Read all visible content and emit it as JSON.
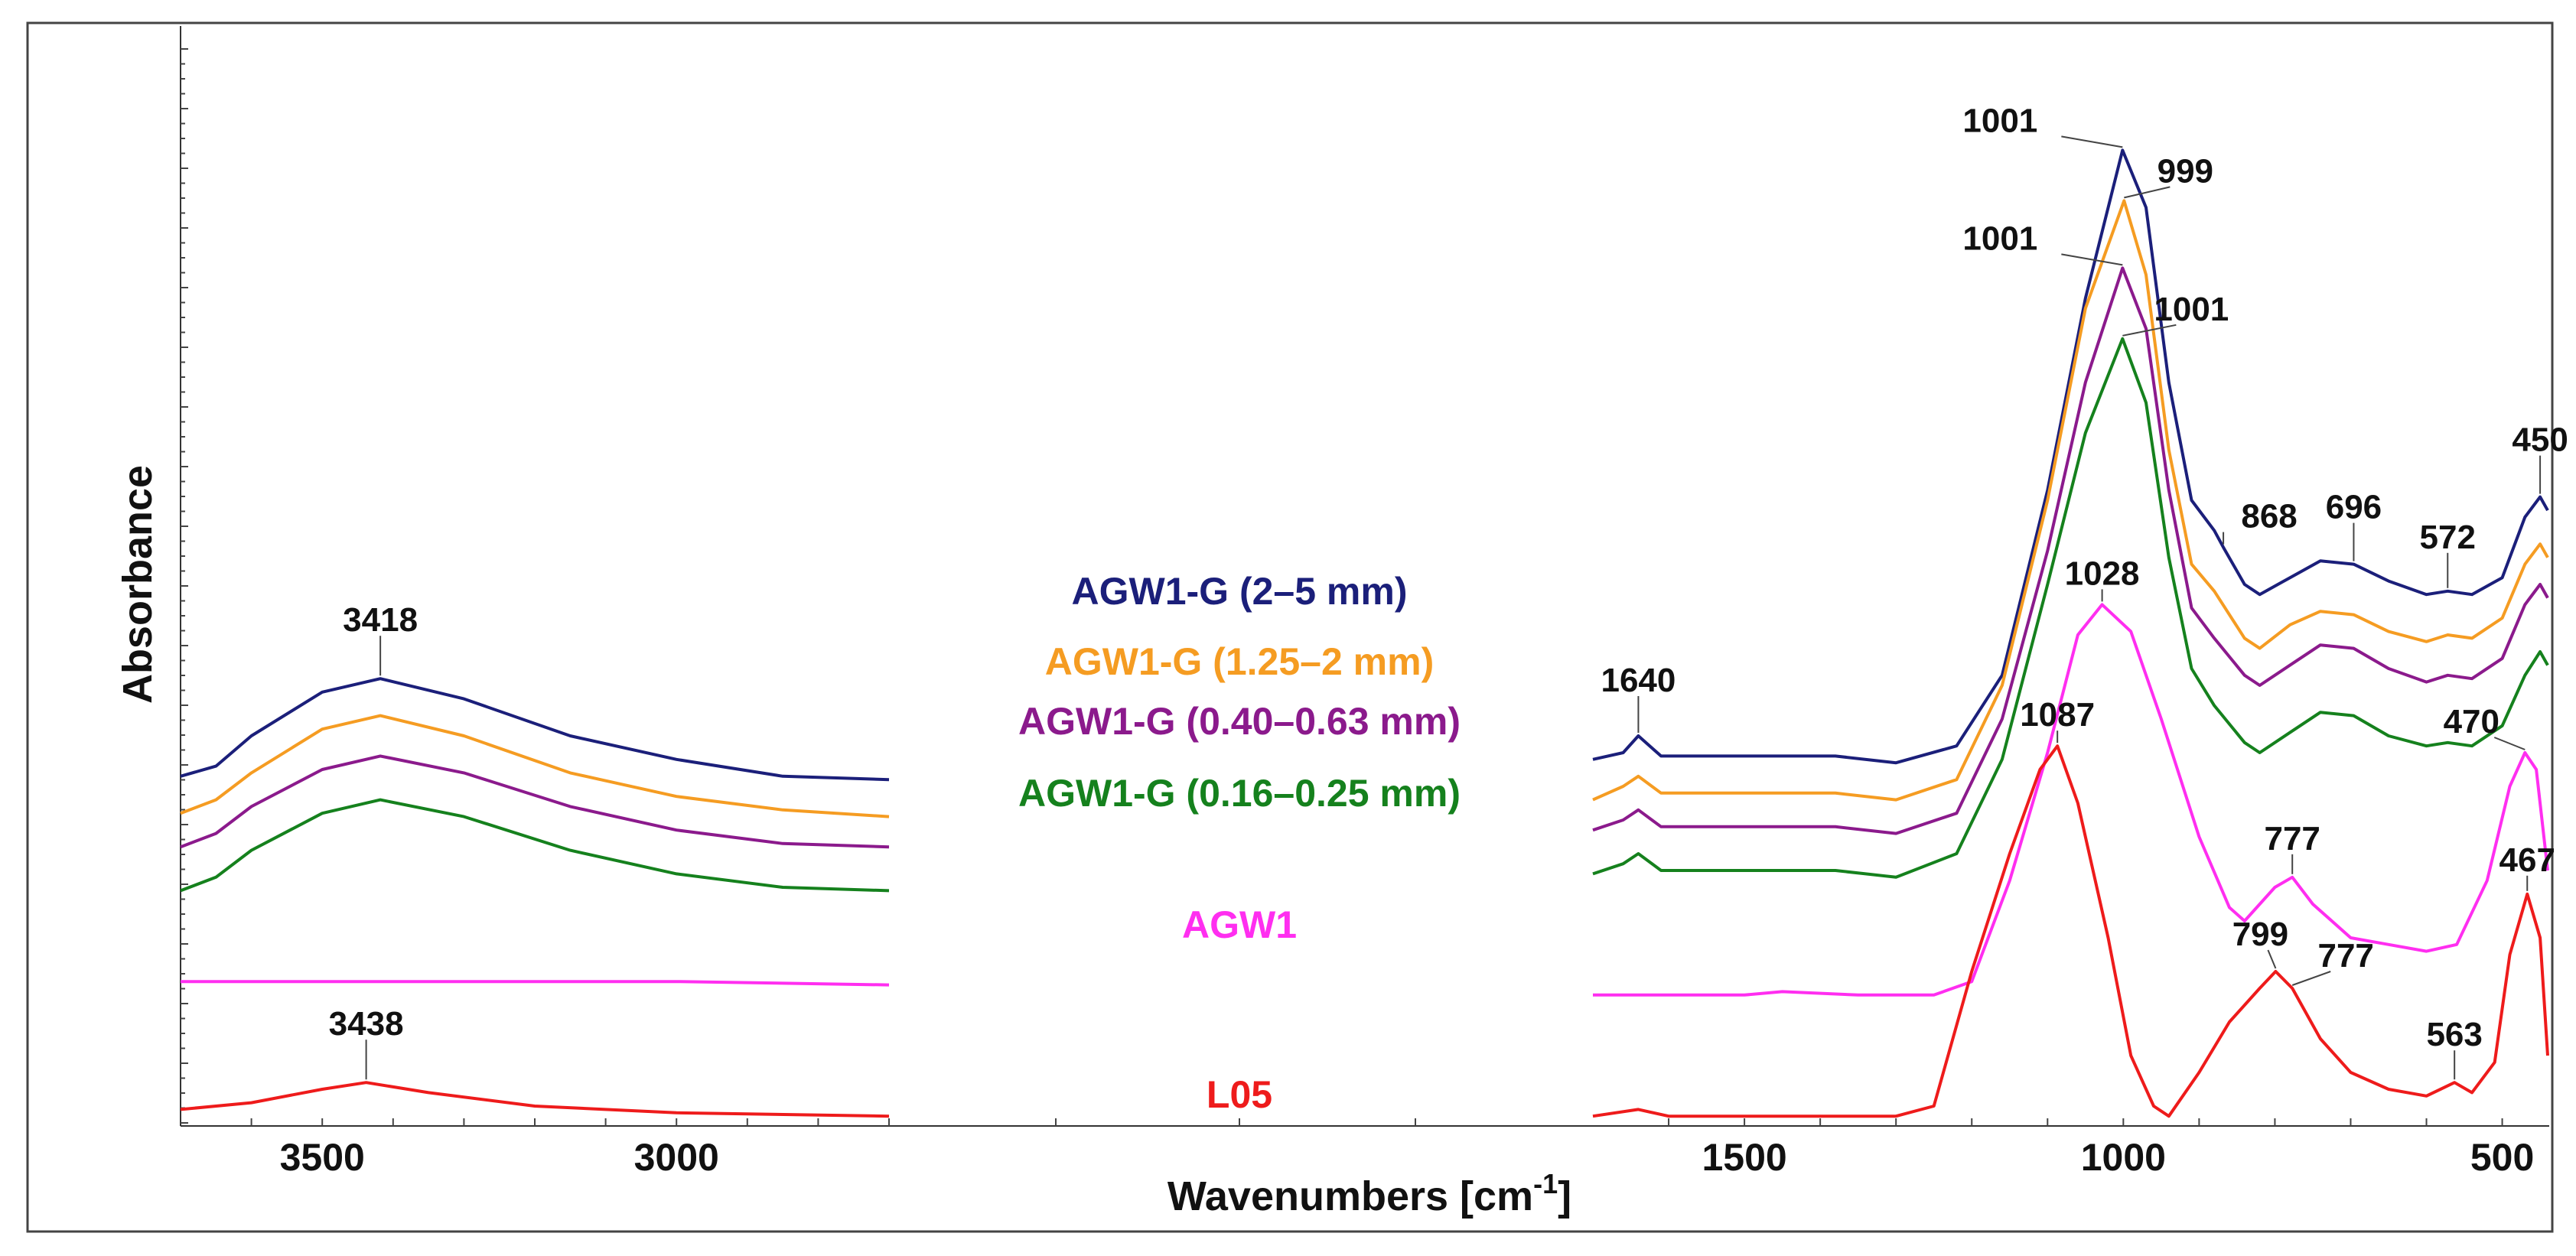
{
  "chart_data": {
    "type": "line",
    "title": "",
    "xlabel": "Wavenumbers [cm",
    "xlabel_sup": "-1",
    "xlabel_end": "]",
    "ylabel": "Absorbance",
    "x_reversed": true,
    "x_tick_labels": [
      "3500",
      "3000",
      "1500",
      "1000",
      "500"
    ],
    "x_tick_values": [
      3500,
      3000,
      1500,
      1000,
      500
    ],
    "left_segment_range": [
      3700,
      2700
    ],
    "right_segment_range": [
      1700,
      440
    ],
    "series": [
      {
        "name": "AGW1-G (2–5 mm)",
        "color": "#1b1f7a",
        "left": [
          [
            3700,
            1.03
          ],
          [
            3650,
            1.06
          ],
          [
            3600,
            1.15
          ],
          [
            3500,
            1.28
          ],
          [
            3418,
            1.32
          ],
          [
            3300,
            1.26
          ],
          [
            3150,
            1.15
          ],
          [
            3000,
            1.08
          ],
          [
            2850,
            1.03
          ],
          [
            2700,
            1.02
          ]
        ],
        "right": [
          [
            1700,
            1.08
          ],
          [
            1660,
            1.1
          ],
          [
            1640,
            1.15
          ],
          [
            1610,
            1.09
          ],
          [
            1550,
            1.09
          ],
          [
            1450,
            1.09
          ],
          [
            1380,
            1.09
          ],
          [
            1300,
            1.07
          ],
          [
            1220,
            1.12
          ],
          [
            1160,
            1.33
          ],
          [
            1100,
            1.88
          ],
          [
            1050,
            2.45
          ],
          [
            1001,
            2.89
          ],
          [
            970,
            2.72
          ],
          [
            940,
            2.2
          ],
          [
            910,
            1.85
          ],
          [
            880,
            1.76
          ],
          [
            868,
            1.71
          ],
          [
            840,
            1.6
          ],
          [
            820,
            1.57
          ],
          [
            780,
            1.62
          ],
          [
            740,
            1.67
          ],
          [
            696,
            1.66
          ],
          [
            650,
            1.61
          ],
          [
            600,
            1.57
          ],
          [
            572,
            1.58
          ],
          [
            540,
            1.57
          ],
          [
            500,
            1.62
          ],
          [
            470,
            1.8
          ],
          [
            450,
            1.86
          ],
          [
            440,
            1.82
          ]
        ]
      },
      {
        "name": "AGW1-G (1.25–2 mm)",
        "color": "#f59c22",
        "left": [
          [
            3700,
            0.92
          ],
          [
            3650,
            0.96
          ],
          [
            3600,
            1.04
          ],
          [
            3500,
            1.17
          ],
          [
            3418,
            1.21
          ],
          [
            3300,
            1.15
          ],
          [
            3150,
            1.04
          ],
          [
            3000,
            0.97
          ],
          [
            2850,
            0.93
          ],
          [
            2700,
            0.91
          ]
        ],
        "right": [
          [
            1700,
            0.96
          ],
          [
            1660,
            1.0
          ],
          [
            1640,
            1.03
          ],
          [
            1610,
            0.98
          ],
          [
            1550,
            0.98
          ],
          [
            1450,
            0.98
          ],
          [
            1380,
            0.98
          ],
          [
            1300,
            0.96
          ],
          [
            1220,
            1.02
          ],
          [
            1160,
            1.3
          ],
          [
            1100,
            1.85
          ],
          [
            1050,
            2.42
          ],
          [
            999,
            2.74
          ],
          [
            970,
            2.52
          ],
          [
            940,
            2.0
          ],
          [
            910,
            1.66
          ],
          [
            880,
            1.58
          ],
          [
            840,
            1.44
          ],
          [
            820,
            1.41
          ],
          [
            780,
            1.48
          ],
          [
            740,
            1.52
          ],
          [
            696,
            1.51
          ],
          [
            650,
            1.46
          ],
          [
            600,
            1.43
          ],
          [
            572,
            1.45
          ],
          [
            540,
            1.44
          ],
          [
            500,
            1.5
          ],
          [
            470,
            1.66
          ],
          [
            450,
            1.72
          ],
          [
            440,
            1.68
          ]
        ]
      },
      {
        "name": "AGW1-G (0.40–0.63 mm)",
        "color": "#8b1a8c",
        "left": [
          [
            3700,
            0.82
          ],
          [
            3650,
            0.86
          ],
          [
            3600,
            0.94
          ],
          [
            3500,
            1.05
          ],
          [
            3418,
            1.09
          ],
          [
            3300,
            1.04
          ],
          [
            3150,
            0.94
          ],
          [
            3000,
            0.87
          ],
          [
            2850,
            0.83
          ],
          [
            2700,
            0.82
          ]
        ],
        "right": [
          [
            1700,
            0.87
          ],
          [
            1660,
            0.9
          ],
          [
            1640,
            0.93
          ],
          [
            1610,
            0.88
          ],
          [
            1550,
            0.88
          ],
          [
            1450,
            0.88
          ],
          [
            1380,
            0.88
          ],
          [
            1300,
            0.86
          ],
          [
            1220,
            0.92
          ],
          [
            1160,
            1.2
          ],
          [
            1100,
            1.7
          ],
          [
            1050,
            2.2
          ],
          [
            1001,
            2.54
          ],
          [
            970,
            2.36
          ],
          [
            940,
            1.88
          ],
          [
            910,
            1.53
          ],
          [
            880,
            1.44
          ],
          [
            840,
            1.33
          ],
          [
            820,
            1.3
          ],
          [
            780,
            1.36
          ],
          [
            740,
            1.42
          ],
          [
            696,
            1.41
          ],
          [
            650,
            1.35
          ],
          [
            600,
            1.31
          ],
          [
            572,
            1.33
          ],
          [
            540,
            1.32
          ],
          [
            500,
            1.38
          ],
          [
            470,
            1.54
          ],
          [
            450,
            1.6
          ],
          [
            440,
            1.56
          ]
        ]
      },
      {
        "name": "AGW1-G (0.16–0.25 mm)",
        "color": "#15811d",
        "left": [
          [
            3700,
            0.69
          ],
          [
            3650,
            0.73
          ],
          [
            3600,
            0.81
          ],
          [
            3500,
            0.92
          ],
          [
            3418,
            0.96
          ],
          [
            3300,
            0.91
          ],
          [
            3150,
            0.81
          ],
          [
            3000,
            0.74
          ],
          [
            2850,
            0.7
          ],
          [
            2700,
            0.69
          ]
        ],
        "right": [
          [
            1700,
            0.74
          ],
          [
            1660,
            0.77
          ],
          [
            1640,
            0.8
          ],
          [
            1610,
            0.75
          ],
          [
            1550,
            0.75
          ],
          [
            1450,
            0.75
          ],
          [
            1380,
            0.75
          ],
          [
            1300,
            0.73
          ],
          [
            1220,
            0.8
          ],
          [
            1160,
            1.08
          ],
          [
            1100,
            1.6
          ],
          [
            1050,
            2.05
          ],
          [
            1001,
            2.33
          ],
          [
            970,
            2.14
          ],
          [
            940,
            1.68
          ],
          [
            910,
            1.35
          ],
          [
            880,
            1.24
          ],
          [
            840,
            1.13
          ],
          [
            820,
            1.1
          ],
          [
            780,
            1.16
          ],
          [
            740,
            1.22
          ],
          [
            696,
            1.21
          ],
          [
            650,
            1.15
          ],
          [
            600,
            1.12
          ],
          [
            572,
            1.13
          ],
          [
            540,
            1.12
          ],
          [
            500,
            1.18
          ],
          [
            470,
            1.33
          ],
          [
            450,
            1.4
          ],
          [
            440,
            1.36
          ]
        ]
      },
      {
        "name": "AGW1",
        "color": "#ff2ef0",
        "left": [
          [
            3700,
            0.42
          ],
          [
            3500,
            0.42
          ],
          [
            3300,
            0.42
          ],
          [
            3000,
            0.42
          ],
          [
            2700,
            0.41
          ]
        ],
        "right": [
          [
            1700,
            0.38
          ],
          [
            1600,
            0.38
          ],
          [
            1500,
            0.38
          ],
          [
            1450,
            0.39
          ],
          [
            1350,
            0.38
          ],
          [
            1250,
            0.38
          ],
          [
            1200,
            0.42
          ],
          [
            1150,
            0.72
          ],
          [
            1100,
            1.1
          ],
          [
            1060,
            1.45
          ],
          [
            1028,
            1.54
          ],
          [
            990,
            1.46
          ],
          [
            950,
            1.2
          ],
          [
            900,
            0.85
          ],
          [
            860,
            0.64
          ],
          [
            840,
            0.6
          ],
          [
            800,
            0.7
          ],
          [
            777,
            0.73
          ],
          [
            750,
            0.65
          ],
          [
            700,
            0.55
          ],
          [
            650,
            0.53
          ],
          [
            600,
            0.51
          ],
          [
            560,
            0.53
          ],
          [
            520,
            0.72
          ],
          [
            490,
            1.0
          ],
          [
            470,
            1.1
          ],
          [
            455,
            1.05
          ],
          [
            440,
            0.75
          ]
        ]
      },
      {
        "name": "L05",
        "color": "#ee1b1b",
        "left": [
          [
            3700,
            0.04
          ],
          [
            3600,
            0.06
          ],
          [
            3500,
            0.1
          ],
          [
            3438,
            0.12
          ],
          [
            3350,
            0.09
          ],
          [
            3200,
            0.05
          ],
          [
            3000,
            0.03
          ],
          [
            2700,
            0.02
          ]
        ],
        "right": [
          [
            1700,
            0.02
          ],
          [
            1640,
            0.04
          ],
          [
            1600,
            0.02
          ],
          [
            1500,
            0.02
          ],
          [
            1400,
            0.02
          ],
          [
            1300,
            0.02
          ],
          [
            1250,
            0.05
          ],
          [
            1200,
            0.45
          ],
          [
            1150,
            0.8
          ],
          [
            1110,
            1.05
          ],
          [
            1087,
            1.12
          ],
          [
            1060,
            0.95
          ],
          [
            1020,
            0.55
          ],
          [
            990,
            0.2
          ],
          [
            960,
            0.05
          ],
          [
            940,
            0.02
          ],
          [
            900,
            0.15
          ],
          [
            860,
            0.3
          ],
          [
            820,
            0.4
          ],
          [
            799,
            0.45
          ],
          [
            777,
            0.4
          ],
          [
            740,
            0.25
          ],
          [
            700,
            0.15
          ],
          [
            650,
            0.1
          ],
          [
            600,
            0.08
          ],
          [
            563,
            0.12
          ],
          [
            540,
            0.09
          ],
          [
            510,
            0.18
          ],
          [
            490,
            0.5
          ],
          [
            467,
            0.68
          ],
          [
            450,
            0.55
          ],
          [
            440,
            0.2
          ]
        ]
      }
    ],
    "annotations": [
      {
        "text": "3418",
        "series": 0,
        "x": 3418
      },
      {
        "text": "3438",
        "series": 5,
        "x": 3438
      },
      {
        "text": "1640",
        "series": 0,
        "x": 1640
      },
      {
        "text": "1001",
        "series": 0,
        "x": 1001
      },
      {
        "text": "999",
        "series": 1,
        "x": 999
      },
      {
        "text": "1001",
        "series": 2,
        "x": 1001
      },
      {
        "text": "1001",
        "series": 3,
        "x": 1001
      },
      {
        "text": "868",
        "series": 0,
        "x": 868
      },
      {
        "text": "696",
        "series": 0,
        "x": 696
      },
      {
        "text": "572",
        "series": 0,
        "x": 572
      },
      {
        "text": "450",
        "series": 0,
        "x": 450
      },
      {
        "text": "1028",
        "series": 4,
        "x": 1028
      },
      {
        "text": "777",
        "series": 4,
        "x": 777
      },
      {
        "text": "470",
        "series": 4,
        "x": 470
      },
      {
        "text": "1087",
        "series": 5,
        "x": 1087
      },
      {
        "text": "799",
        "series": 5,
        "x": 799
      },
      {
        "text": "777",
        "series": 5,
        "x": 777
      },
      {
        "text": "563",
        "series": 5,
        "x": 563
      },
      {
        "text": "467",
        "series": 5,
        "x": 467
      }
    ],
    "legend": [
      "AGW1-G (2–5 mm)",
      "AGW1-G (1.25–2 mm)",
      "AGW1-G (0.40–0.63 mm)",
      "AGW1-G (0.16–0.25 mm)",
      "AGW1",
      "L05"
    ],
    "legend_position": "center"
  }
}
